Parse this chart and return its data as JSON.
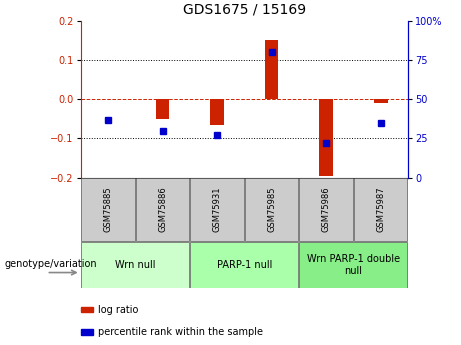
{
  "title": "GDS1675 / 15169",
  "samples": [
    "GSM75885",
    "GSM75886",
    "GSM75931",
    "GSM75985",
    "GSM75986",
    "GSM75987"
  ],
  "log_ratio": [
    0.0,
    -0.05,
    -0.065,
    0.15,
    -0.195,
    -0.01
  ],
  "percentile_rank": [
    37,
    30,
    27,
    80,
    22,
    35
  ],
  "ylim_left": [
    -0.2,
    0.2
  ],
  "ylim_right": [
    0,
    100
  ],
  "yticks_left": [
    -0.2,
    -0.1,
    0,
    0.1,
    0.2
  ],
  "yticks_right": [
    0,
    25,
    50,
    75,
    100
  ],
  "ytick_labels_right": [
    "0",
    "25",
    "50",
    "75",
    "100%"
  ],
  "groups": [
    {
      "label": "Wrn null",
      "start": 0,
      "end": 2,
      "color": "#ccffcc"
    },
    {
      "label": "PARP-1 null",
      "start": 2,
      "end": 4,
      "color": "#aaffaa"
    },
    {
      "label": "Wrn PARP-1 double\nnull",
      "start": 4,
      "end": 6,
      "color": "#88ee88"
    }
  ],
  "bar_color": "#cc2200",
  "dot_color": "#0000cc",
  "zero_line_color": "#cc2200",
  "background_color": "#ffffff",
  "legend_labels": [
    "log ratio",
    "percentile rank within the sample"
  ],
  "legend_colors": [
    "#cc2200",
    "#0000cc"
  ],
  "genotype_label": "genotype/variation",
  "title_fontsize": 10,
  "tick_fontsize": 7,
  "sample_fontsize": 6,
  "group_fontsize": 7,
  "legend_fontsize": 7,
  "geno_fontsize": 7
}
